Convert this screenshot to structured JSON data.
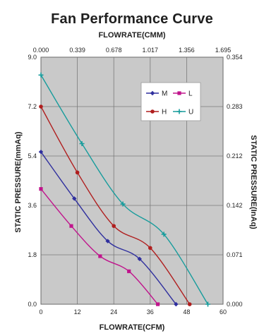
{
  "chart_data": {
    "type": "line",
    "title": "Fan Performance Curve",
    "xlabel": "FLOWRATE(CFM)",
    "x2label": "FLOWRATE(CMM)",
    "ylabel": "STATIC PRESSURE(mmAq)",
    "y2label": "STATIC PRESSURE(InAq)",
    "xlim": [
      0,
      60
    ],
    "x2lim": [
      0,
      1.695
    ],
    "ylim": [
      0,
      9.0
    ],
    "y2lim": [
      0,
      0.354
    ],
    "x_ticks": [
      "0",
      "12",
      "24",
      "36",
      "48",
      "60"
    ],
    "x2_ticks": [
      "0.000",
      "0.339",
      "0.678",
      "1.017",
      "1.356",
      "1.695"
    ],
    "y_ticks": [
      "0.0",
      "1.8",
      "3.6",
      "5.4",
      "7.2",
      "9.0"
    ],
    "y2_ticks": [
      "0.000",
      "0.071",
      "0.142",
      "0.212",
      "0.283",
      "0.354"
    ],
    "grid": true,
    "legend_position": "top-right",
    "series": [
      {
        "name": "M",
        "color": "#2f2f9e",
        "marker": "diamond",
        "points": [
          [
            0,
            5.55
          ],
          [
            11,
            3.85
          ],
          [
            22,
            2.3
          ],
          [
            32.5,
            1.65
          ],
          [
            44.5,
            0.0
          ]
        ]
      },
      {
        "name": "L",
        "color": "#c0148c",
        "marker": "square",
        "points": [
          [
            0,
            4.2
          ],
          [
            10,
            2.85
          ],
          [
            19.5,
            1.75
          ],
          [
            29,
            1.2
          ],
          [
            38.5,
            0.0
          ]
        ]
      },
      {
        "name": "H",
        "color": "#b01e1e",
        "marker": "circle",
        "points": [
          [
            0,
            7.2
          ],
          [
            12,
            4.8
          ],
          [
            24,
            2.85
          ],
          [
            36,
            2.05
          ],
          [
            49,
            0.0
          ]
        ]
      },
      {
        "name": "U",
        "color": "#179c9c",
        "marker": "plus",
        "points": [
          [
            0,
            8.35
          ],
          [
            13.5,
            5.85
          ],
          [
            27,
            3.65
          ],
          [
            40.5,
            2.55
          ],
          [
            55,
            0.0
          ]
        ]
      }
    ]
  }
}
